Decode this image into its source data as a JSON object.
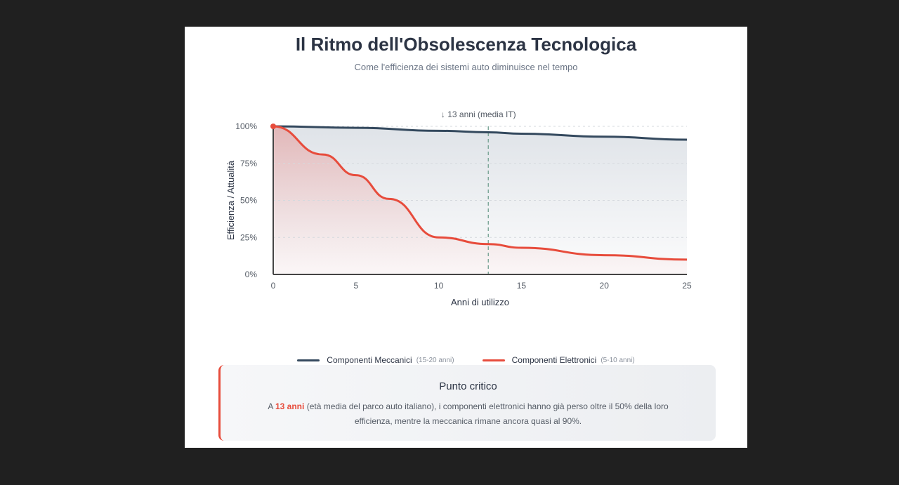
{
  "title": "Il Ritmo dell'Obsolescenza Tecnologica",
  "subtitle": "Come l'efficienza dei sistemi auto diminuisce nel tempo",
  "chart_data": {
    "type": "line",
    "xlabel": "Anni di utilizzo",
    "ylabel": "Efficienza / Attualità",
    "xlim": [
      0,
      25
    ],
    "ylim": [
      0,
      100
    ],
    "x_ticks": [
      "0",
      "5",
      "10",
      "15",
      "20",
      "25"
    ],
    "y_ticks": [
      "0%",
      "25%",
      "50%",
      "75%",
      "100%"
    ],
    "grid": true,
    "annotation": "↓ 13 anni (media IT)",
    "annotation_x": 13,
    "series": [
      {
        "name": "Componenti Meccanici",
        "note": "(15-20 anni)",
        "color": "#34495e",
        "x": [
          0,
          5,
          10,
          13,
          15,
          20,
          25
        ],
        "y": [
          100,
          99,
          97,
          96,
          95,
          93,
          91
        ]
      },
      {
        "name": "Componenti Elettronici",
        "note": "(5-10 anni)",
        "color": "#e74c3c",
        "x": [
          0,
          3,
          5,
          7,
          10,
          13,
          15,
          20,
          25
        ],
        "y": [
          100,
          81,
          67,
          51,
          25,
          20.5,
          18,
          13,
          10
        ]
      }
    ],
    "legend": "bottom"
  },
  "callout": {
    "title": "Punto critico",
    "prefix": "A ",
    "highlight": "13 anni",
    "text": " (età media del parco auto italiano), i componenti elettronici hanno già perso oltre il 50% della loro efficienza, mentre la meccanica rimane ancora quasi al 90%."
  }
}
